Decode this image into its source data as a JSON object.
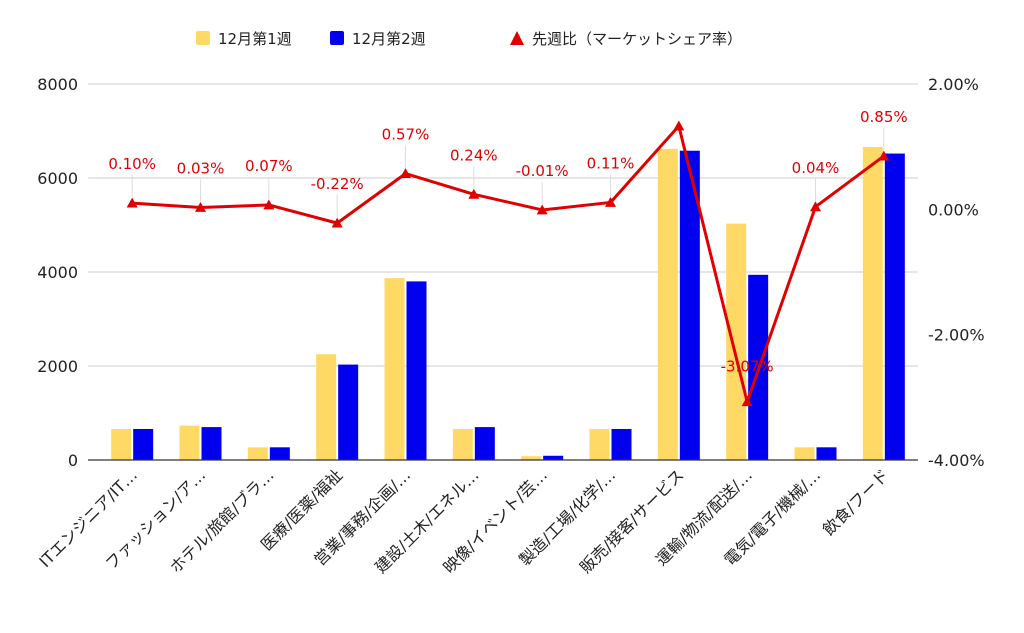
{
  "chart_data": {
    "type": "bar",
    "categories": [
      "ITエンジニア/IT…",
      "ファッション/ア…",
      "ホテル/旅館/ブラ…",
      "医療/医薬/福祉",
      "営業/事務/企画/…",
      "建設/土木/エネル…",
      "映像/イベント/芸…",
      "製造/工場/化学/…",
      "販売/接客/サービス",
      "運輸/物流/配送/…",
      "電気/電子/機械/…",
      "飲食/フード"
    ],
    "series": [
      {
        "name": "12月第1週",
        "type": "bar",
        "axis": "left",
        "color": "#FFD966",
        "values": [
          660,
          730,
          270,
          2250,
          3870,
          660,
          80,
          660,
          6620,
          5030,
          270,
          6660
        ]
      },
      {
        "name": "12月第2週",
        "type": "bar",
        "axis": "left",
        "color": "#0000EE",
        "values": [
          660,
          700,
          270,
          2030,
          3800,
          700,
          90,
          660,
          6580,
          3940,
          270,
          6520
        ]
      },
      {
        "name": "先週比（マーケットシェア率）",
        "type": "line",
        "axis": "right",
        "color": "#E00000",
        "values": [
          0.1,
          0.03,
          0.07,
          -0.22,
          0.57,
          0.24,
          -0.01,
          0.11,
          1.33,
          -3.07,
          0.04,
          0.85
        ],
        "labels": [
          "0.10%",
          "0.03%",
          "0.07%",
          "-0.22%",
          "0.57%",
          "0.24%",
          "-0.01%",
          "0.11%",
          null,
          "-3.07%",
          "0.04%",
          "0.85%"
        ]
      }
    ],
    "left_axis": {
      "ylim": [
        0,
        8000
      ],
      "ticks": [
        "0",
        "2000",
        "4000",
        "6000",
        "8000"
      ]
    },
    "right_axis": {
      "ylim": [
        -4,
        2
      ],
      "ticks": [
        "-4.00%",
        "-2.00%",
        "0.00%",
        "2.00%"
      ]
    },
    "grid": true,
    "legend_position": "top-center"
  }
}
